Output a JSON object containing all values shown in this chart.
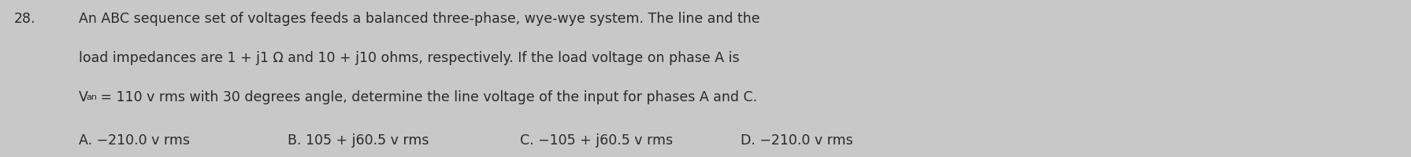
{
  "question_number": "28.",
  "line1": "An ABC sequence set of voltages feeds a balanced three-phase, wye-wye system. The line and the",
  "line2": "load impedances are 1 + j1 Ω and 10 + j10 ohms, respectively. If the load voltage on phase A is",
  "line3_V": "V",
  "line3_sub": "an",
  "line3_rest": " = 110 v rms with 30 degrees angle, determine the line voltage of the input for phases A and C.",
  "answer_A": "A. −210.0 v rms",
  "answer_B": "B. 105 + j60.5 v rms",
  "answer_C": "C. −105 + j60.5 v rms",
  "answer_D": "D. −210.0 v rms",
  "bg_color": "#c8c8c8",
  "text_color": "#2a2a2a",
  "font_size": 12.5
}
